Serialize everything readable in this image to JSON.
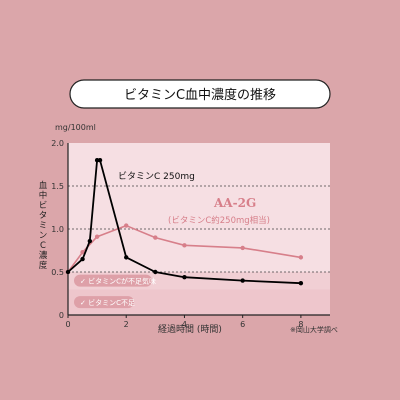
{
  "chart_data": {
    "type": "line",
    "title": "ビタミンC血中濃度の推移",
    "xlabel": "経過時間 (時間)",
    "ylabel": "血中ビタミンC濃度",
    "yunit": "mg/100ml",
    "xlim": [
      0,
      9
    ],
    "ylim": [
      0,
      2.0
    ],
    "xticks": [
      0,
      2,
      4,
      6,
      8
    ],
    "yticks": [
      "0",
      "0.5",
      "1.0",
      "1.5",
      "2.0"
    ],
    "dashed_lines": [
      0.5,
      1.0,
      1.5
    ],
    "bands": [
      {
        "label": "ビタミンCが不足気味",
        "range": [
          0.3,
          0.5
        ]
      },
      {
        "label": "ビタミンC不足",
        "range": [
          0.0,
          0.3
        ]
      }
    ],
    "series": [
      {
        "name": "ビタミンC 250mg",
        "color": "#000000",
        "points": [
          [
            0,
            0.5
          ],
          [
            0.5,
            0.65
          ],
          [
            0.75,
            0.86
          ],
          [
            1.0,
            1.8
          ],
          [
            1.1,
            1.8
          ],
          [
            2,
            0.67
          ],
          [
            3,
            0.5
          ],
          [
            4,
            0.44
          ],
          [
            6,
            0.4
          ],
          [
            8,
            0.37
          ]
        ]
      },
      {
        "name": "AA-2G",
        "subtitle": "(ビタミンC約250mg相当)",
        "color": "#d77f8a",
        "points": [
          [
            0,
            0.5
          ],
          [
            0.5,
            0.73
          ],
          [
            1,
            0.91
          ],
          [
            2,
            1.04
          ],
          [
            3,
            0.9
          ],
          [
            4,
            0.81
          ],
          [
            6,
            0.78
          ],
          [
            8,
            0.67
          ]
        ]
      }
    ],
    "note": "※岡山大学調べ"
  }
}
